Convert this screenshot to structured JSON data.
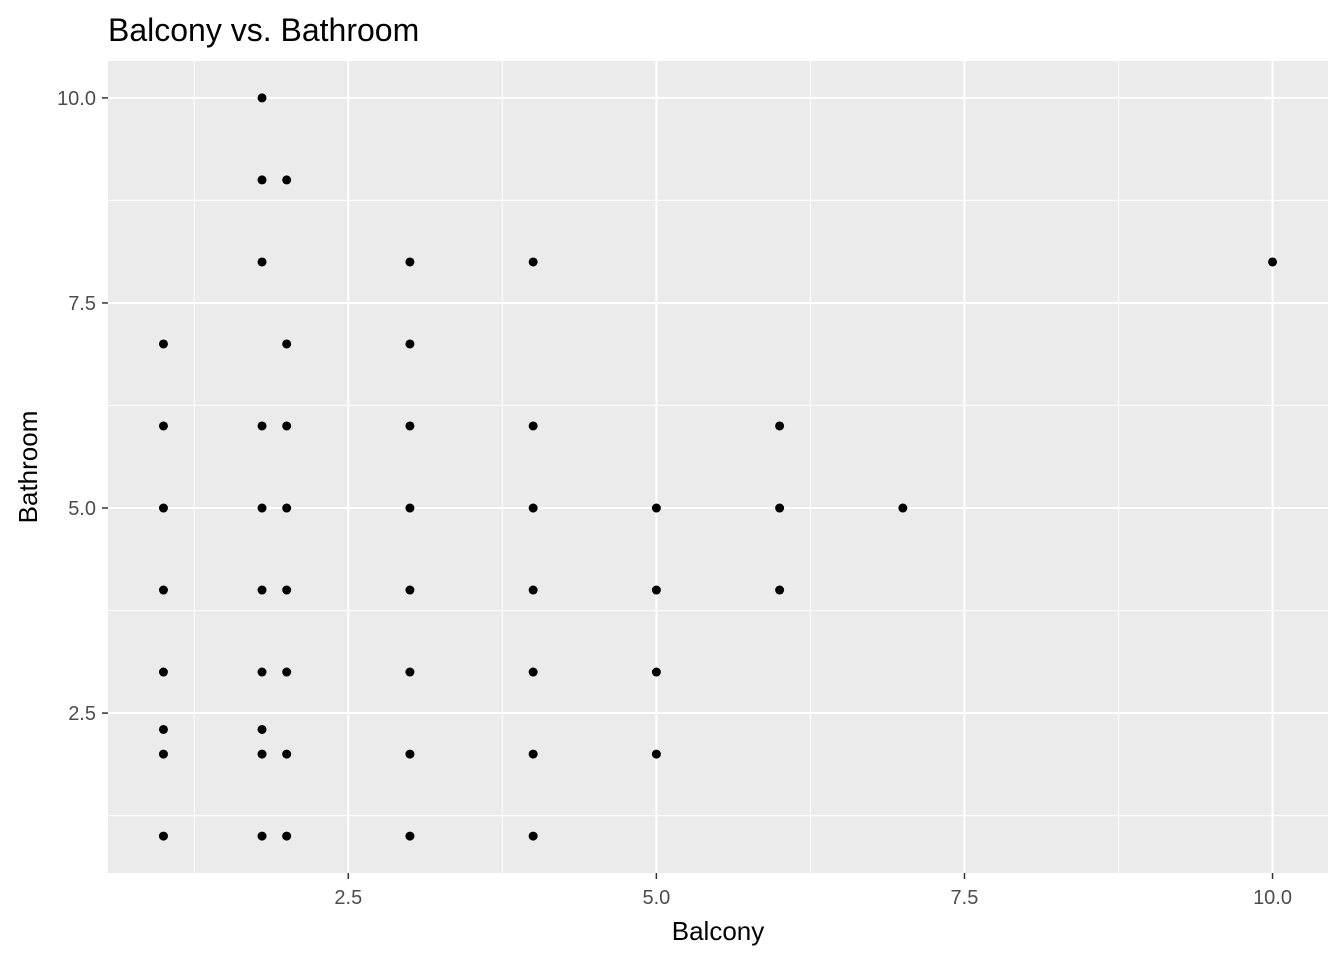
{
  "chart_data": {
    "type": "scatter",
    "title": "Balcony vs. Bathroom",
    "xlabel": "Balcony",
    "ylabel": "Bathroom",
    "xlim": [
      0.55,
      10.45
    ],
    "ylim": [
      0.55,
      10.45
    ],
    "x_ticks": [
      2.5,
      5.0,
      7.5,
      10.0
    ],
    "x_tick_labels": [
      "2.5",
      "5.0",
      "7.5",
      "10.0"
    ],
    "y_ticks": [
      2.5,
      5.0,
      7.5,
      10.0
    ],
    "y_tick_labels": [
      "2.5",
      "5.0",
      "7.5",
      "10.0"
    ],
    "panel_background": "#ebebeb",
    "grid_color": "#ffffff",
    "point_color": "#000000",
    "points": [
      {
        "x": 1,
        "y": 1
      },
      {
        "x": 1,
        "y": 2
      },
      {
        "x": 1,
        "y": 2.3
      },
      {
        "x": 1,
        "y": 3
      },
      {
        "x": 1,
        "y": 4
      },
      {
        "x": 1,
        "y": 5
      },
      {
        "x": 1,
        "y": 6
      },
      {
        "x": 1,
        "y": 7
      },
      {
        "x": 1.8,
        "y": 1
      },
      {
        "x": 1.8,
        "y": 2
      },
      {
        "x": 1.8,
        "y": 2.3
      },
      {
        "x": 1.8,
        "y": 3
      },
      {
        "x": 1.8,
        "y": 4
      },
      {
        "x": 1.8,
        "y": 5
      },
      {
        "x": 1.8,
        "y": 6
      },
      {
        "x": 1.8,
        "y": 8
      },
      {
        "x": 1.8,
        "y": 9
      },
      {
        "x": 1.8,
        "y": 10
      },
      {
        "x": 2,
        "y": 1
      },
      {
        "x": 2,
        "y": 2
      },
      {
        "x": 2,
        "y": 3
      },
      {
        "x": 2,
        "y": 4
      },
      {
        "x": 2,
        "y": 5
      },
      {
        "x": 2,
        "y": 6
      },
      {
        "x": 2,
        "y": 7
      },
      {
        "x": 2,
        "y": 9
      },
      {
        "x": 3,
        "y": 1
      },
      {
        "x": 3,
        "y": 2
      },
      {
        "x": 3,
        "y": 3
      },
      {
        "x": 3,
        "y": 4
      },
      {
        "x": 3,
        "y": 5
      },
      {
        "x": 3,
        "y": 6
      },
      {
        "x": 3,
        "y": 7
      },
      {
        "x": 3,
        "y": 8
      },
      {
        "x": 4,
        "y": 1
      },
      {
        "x": 4,
        "y": 2
      },
      {
        "x": 4,
        "y": 3
      },
      {
        "x": 4,
        "y": 4
      },
      {
        "x": 4,
        "y": 5
      },
      {
        "x": 4,
        "y": 6
      },
      {
        "x": 4,
        "y": 8
      },
      {
        "x": 5,
        "y": 2
      },
      {
        "x": 5,
        "y": 3
      },
      {
        "x": 5,
        "y": 4
      },
      {
        "x": 5,
        "y": 5
      },
      {
        "x": 6,
        "y": 4
      },
      {
        "x": 6,
        "y": 5
      },
      {
        "x": 6,
        "y": 6
      },
      {
        "x": 7,
        "y": 5
      },
      {
        "x": 10,
        "y": 8
      }
    ]
  }
}
